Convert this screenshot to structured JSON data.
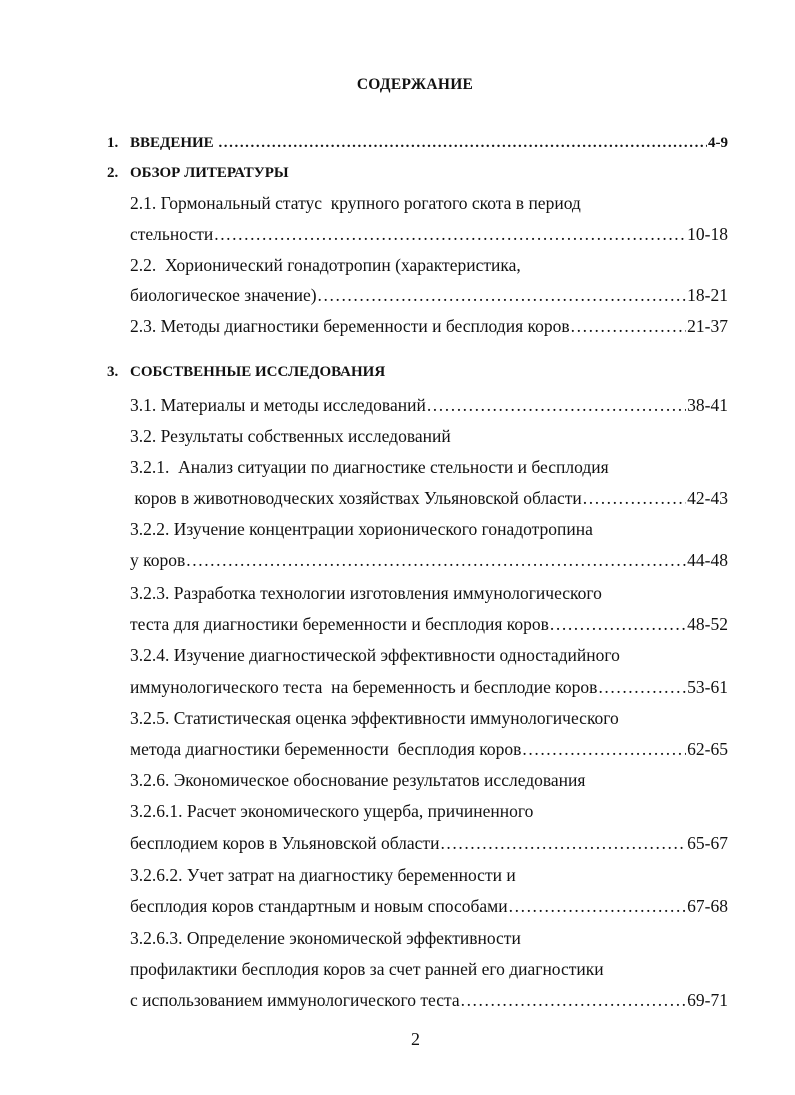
{
  "title": "СОДЕРЖАНИЕ",
  "entries": [
    {
      "number": "1.",
      "text": "ВВЕДЕНИЕ ",
      "pages": "4-9",
      "bold": true
    },
    {
      "number": "2.",
      "text": "ОБЗОР ЛИТЕРАТУРЫ",
      "pages": "",
      "bold": true
    },
    {
      "text": "2.1. Гормональный статус  крупного рогатого скота в период",
      "pages": ""
    },
    {
      "text": "стельности",
      "pages": "10-18"
    },
    {
      "text": "2.2.  Хорионический гонадотропин (характеристика,",
      "pages": ""
    },
    {
      "text": "биологическое значение)",
      "pages": "18-21"
    },
    {
      "text": "2.3. Методы диагностики беременности и бесплодия коров",
      "pages": "21-37"
    },
    {
      "number": "3.",
      "text": "СОБСТВЕННЫЕ ИССЛЕДОВАНИЯ",
      "pages": "",
      "bold": true
    },
    {
      "text": "3.1. Материалы и методы исследований",
      "pages": "38-41"
    },
    {
      "text": "3.2. Результаты собственных исследований",
      "pages": ""
    },
    {
      "text": "3.2.1.  Анализ ситуации по диагностике стельности и бесплодия",
      "pages": ""
    },
    {
      "text": " коров в животноводческих хозяйствах Ульяновской области",
      "pages": "42-43"
    },
    {
      "text": "3.2.2. Изучение концентрации хорионического гонадотропина",
      "pages": ""
    },
    {
      "text": "у коров",
      "pages": "44-48"
    },
    {
      "text": "3.2.3. Разработка технологии изготовления иммунологического",
      "pages": ""
    },
    {
      "text": "теста для диагностики беременности и бесплодия коров",
      "pages": "48-52"
    },
    {
      "text": "3.2.4. Изучение диагностической эффективности одностадийного",
      "pages": ""
    },
    {
      "text": "иммунологического теста  на беременность и бесплодие коров",
      "pages": "53-61"
    },
    {
      "text": "3.2.5. Статистическая оценка эффективности иммунологического",
      "pages": ""
    },
    {
      "text": "метода диагностики беременности  бесплодия коров",
      "pages": "62-65"
    },
    {
      "text": "3.2.6. Экономическое обоснование результатов исследования",
      "pages": ""
    },
    {
      "text": "3.2.6.1. Расчет экономического ущерба, причиненного",
      "pages": ""
    },
    {
      "text": "бесплодием коров в Ульяновской области",
      "pages": "65-67"
    },
    {
      "text": "3.2.6.2. Учет затрат на диагностику беременности и",
      "pages": ""
    },
    {
      "text": "бесплодия коров стандартным и новым способами",
      "pages": " 67-68"
    },
    {
      "text": "3.2.6.3. Определение экономической эффективности",
      "pages": ""
    },
    {
      "text": "профилактики бесплодия коров за счет ранней его диагностики",
      "pages": ""
    },
    {
      "text": "с использованием иммунологического теста",
      "pages": "69-71"
    }
  ],
  "page_number": "2"
}
